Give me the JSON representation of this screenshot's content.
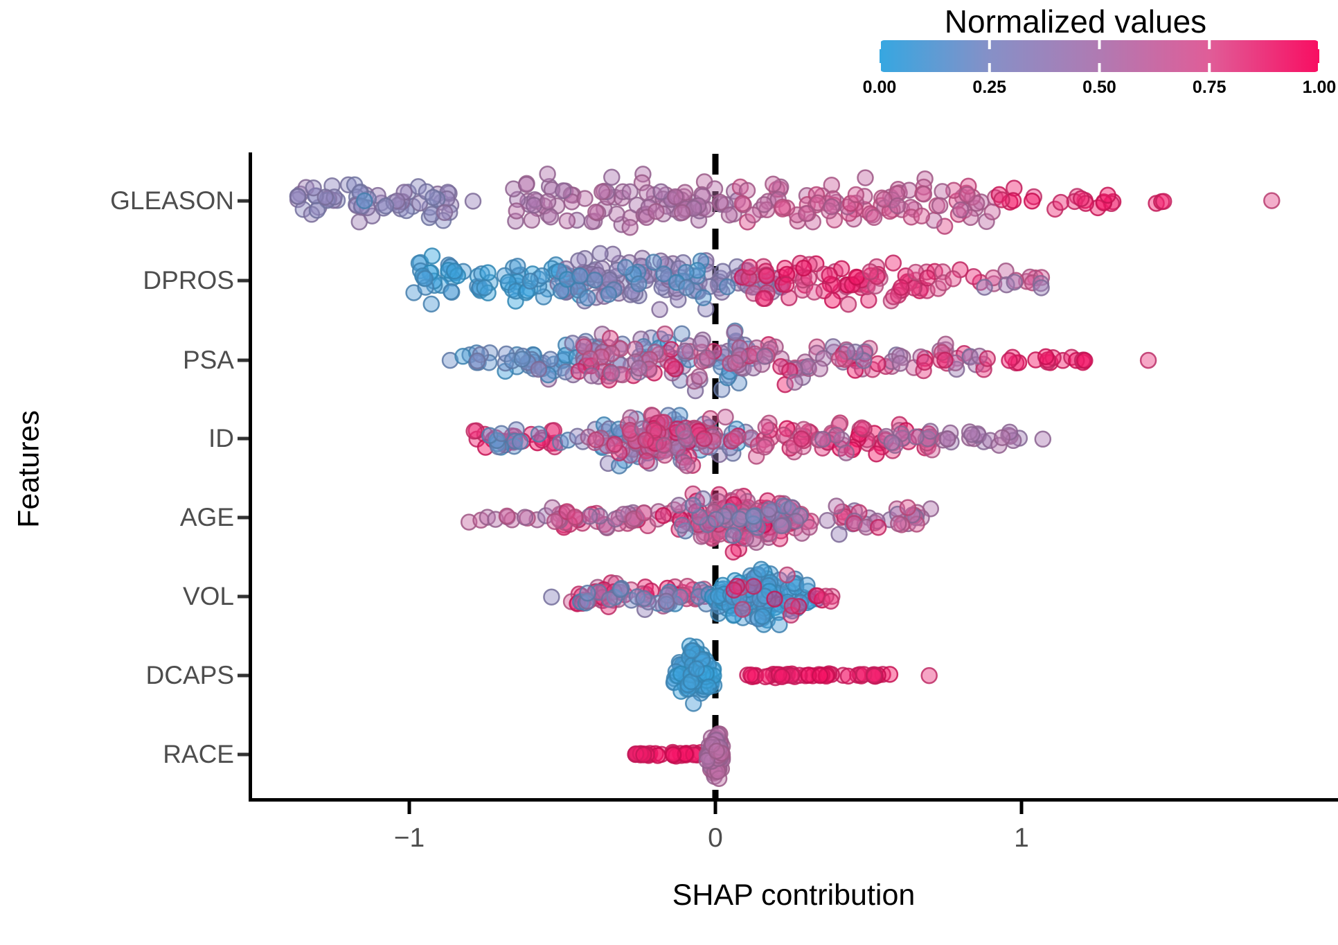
{
  "chart_data": {
    "type": "scatter",
    "variant": "shap-summary-beeswarm",
    "title": "",
    "xlabel": "SHAP contribution",
    "ylabel": "Features",
    "features": [
      "GLEASON",
      "DPROS",
      "PSA",
      "ID",
      "AGE",
      "VOL",
      "DCAPS",
      "RACE"
    ],
    "x_ticks": {
      "values": [
        -1,
        0,
        1
      ],
      "labels": [
        "−1",
        "0",
        "1"
      ]
    },
    "xlim": [
      -1.52,
      2.03
    ],
    "grid": false,
    "zero_reference_line": {
      "x": 0,
      "style": "dashed",
      "color": "#000000"
    },
    "axis_text_color": "#4d4d4d",
    "axis_line_color": "#000000",
    "legend": {
      "position": "top-right",
      "title": "Normalized values",
      "scale_ticks": [
        "0.00",
        "0.25",
        "0.50",
        "0.75",
        "1.00"
      ],
      "scale_tick_values": [
        0,
        0.25,
        0.5,
        0.75,
        1
      ],
      "gradient_stops": [
        "#36a7e1",
        "#8690c7",
        "#b07ab2",
        "#e05d98",
        "#f80e62"
      ]
    },
    "point_style": {
      "radius_px": 11,
      "fill_opacity": 0.45,
      "stroke_opacity": 0.85
    },
    "clusters": {
      "GLEASON": [
        {
          "x0": -1.38,
          "x1": -0.82,
          "v0": 0.26,
          "v1": 0.42,
          "n": 65,
          "spread": 40
        },
        {
          "x0": -1.15,
          "x1": -1.12,
          "v0": 0.08,
          "v1": 0.14,
          "n": 1,
          "spread": 3
        },
        {
          "x0": -0.8,
          "x1": -0.77,
          "v0": 0.34,
          "v1": 0.4,
          "n": 1,
          "spread": 3
        },
        {
          "x0": -0.66,
          "x1": 0.08,
          "v0": 0.46,
          "v1": 0.6,
          "n": 95,
          "spread": 46
        },
        {
          "x0": 0.08,
          "x1": 0.92,
          "v0": 0.58,
          "v1": 0.8,
          "n": 95,
          "spread": 46
        },
        {
          "x0": 0.92,
          "x1": 1.32,
          "v0": 0.85,
          "v1": 1.0,
          "n": 20,
          "spread": 22
        },
        {
          "x0": 1.42,
          "x1": 1.52,
          "v0": 0.9,
          "v1": 1.0,
          "n": 3,
          "spread": 8
        },
        {
          "x0": 1.8,
          "x1": 1.84,
          "v0": 0.78,
          "v1": 0.85,
          "n": 1,
          "spread": 3
        }
      ],
      "DPROS": [
        {
          "x0": -1.0,
          "x1": -0.44,
          "v0": 0.0,
          "v1": 0.1,
          "n": 75,
          "spread": 40
        },
        {
          "x0": -0.52,
          "x1": 0.22,
          "v0": 0.3,
          "v1": 0.44,
          "n": 115,
          "spread": 48
        },
        {
          "x0": -0.52,
          "x1": 0.05,
          "v0": 0.05,
          "v1": 0.2,
          "n": 25,
          "spread": 45
        },
        {
          "x0": 0.08,
          "x1": 0.72,
          "v0": 0.72,
          "v1": 1.0,
          "n": 80,
          "spread": 42
        },
        {
          "x0": 0.72,
          "x1": 1.08,
          "v0": 0.62,
          "v1": 0.92,
          "n": 16,
          "spread": 22
        },
        {
          "x0": 0.85,
          "x1": 1.1,
          "v0": 0.36,
          "v1": 0.46,
          "n": 5,
          "spread": 18
        }
      ],
      "PSA": [
        {
          "x0": -0.88,
          "x1": -0.85,
          "v0": 0.18,
          "v1": 0.22,
          "n": 1,
          "spread": 3
        },
        {
          "x0": -0.83,
          "x1": -0.56,
          "v0": 0.05,
          "v1": 0.25,
          "n": 28,
          "spread": 22
        },
        {
          "x0": -0.58,
          "x1": 0.12,
          "v0": 0.05,
          "v1": 0.5,
          "n": 85,
          "spread": 50
        },
        {
          "x0": -0.45,
          "x1": 0.32,
          "v0": 0.4,
          "v1": 0.95,
          "n": 85,
          "spread": 48
        },
        {
          "x0": 0.32,
          "x1": 0.88,
          "v0": 0.35,
          "v1": 0.95,
          "n": 55,
          "spread": 32
        },
        {
          "x0": 0.88,
          "x1": 1.22,
          "v0": 0.85,
          "v1": 1.0,
          "n": 18,
          "spread": 10
        },
        {
          "x0": 1.38,
          "x1": 1.42,
          "v0": 0.82,
          "v1": 0.88,
          "n": 1,
          "spread": 3
        }
      ],
      "ID": [
        {
          "x0": -0.8,
          "x1": -0.52,
          "v0": 0.85,
          "v1": 1.0,
          "n": 26,
          "spread": 20
        },
        {
          "x0": -0.74,
          "x1": -0.48,
          "v0": 0.05,
          "v1": 0.25,
          "n": 14,
          "spread": 22
        },
        {
          "x0": -0.5,
          "x1": 0.15,
          "v0": 0.05,
          "v1": 0.4,
          "n": 80,
          "spread": 50,
          "shape": "violin"
        },
        {
          "x0": -0.45,
          "x1": 0.18,
          "v0": 0.5,
          "v1": 0.95,
          "n": 85,
          "spread": 50,
          "shape": "violin"
        },
        {
          "x0": 0.12,
          "x1": 0.72,
          "v0": 0.68,
          "v1": 1.0,
          "n": 70,
          "spread": 40
        },
        {
          "x0": 0.35,
          "x1": 0.72,
          "v0": 0.4,
          "v1": 0.55,
          "n": 12,
          "spread": 25
        },
        {
          "x0": 0.74,
          "x1": 1.0,
          "v0": 0.42,
          "v1": 0.55,
          "n": 20,
          "spread": 14
        },
        {
          "x0": 1.04,
          "x1": 1.07,
          "v0": 0.45,
          "v1": 0.5,
          "n": 1,
          "spread": 3
        }
      ],
      "AGE": [
        {
          "x0": -0.81,
          "x1": -0.56,
          "v0": 0.5,
          "v1": 0.72,
          "n": 10,
          "spread": 8
        },
        {
          "x0": -0.56,
          "x1": -0.18,
          "v0": 0.42,
          "v1": 0.92,
          "n": 45,
          "spread": 24
        },
        {
          "x0": -0.18,
          "x1": 0.36,
          "v0": 0.55,
          "v1": 1.0,
          "n": 150,
          "spread": 55,
          "shape": "violin"
        },
        {
          "x0": -0.15,
          "x1": 0.3,
          "v0": 0.15,
          "v1": 0.45,
          "n": 30,
          "spread": 40
        },
        {
          "x0": 0.36,
          "x1": 0.72,
          "v0": 0.3,
          "v1": 0.9,
          "n": 35,
          "spread": 25
        }
      ],
      "VOL": [
        {
          "x0": -0.54,
          "x1": -0.52,
          "v0": 0.3,
          "v1": 0.4,
          "n": 1,
          "spread": 3
        },
        {
          "x0": -0.48,
          "x1": -0.02,
          "v0": 0.6,
          "v1": 1.0,
          "n": 55,
          "spread": 28
        },
        {
          "x0": -0.45,
          "x1": -0.02,
          "v0": 0.05,
          "v1": 0.4,
          "n": 25,
          "spread": 28
        },
        {
          "x0": -0.03,
          "x1": 0.34,
          "v0": 0.0,
          "v1": 0.12,
          "n": 140,
          "spread": 58,
          "shape": "violin"
        },
        {
          "x0": 0.05,
          "x1": 0.3,
          "v0": 0.75,
          "v1": 0.95,
          "n": 10,
          "spread": 40
        },
        {
          "x0": 0.32,
          "x1": 0.42,
          "v0": 0.8,
          "v1": 1.0,
          "n": 6,
          "spread": 14
        }
      ],
      "DCAPS": [
        {
          "x0": -0.14,
          "x1": 0.01,
          "v0": 0.0,
          "v1": 0.08,
          "n": 110,
          "spread": 58,
          "shape": "violin"
        },
        {
          "x0": 0.1,
          "x1": 0.58,
          "v0": 0.92,
          "v1": 1.0,
          "n": 45,
          "spread": 4
        },
        {
          "x0": 0.66,
          "x1": 0.7,
          "v0": 0.8,
          "v1": 0.88,
          "n": 1,
          "spread": 3
        }
      ],
      "RACE": [
        {
          "x0": -0.27,
          "x1": -0.04,
          "v0": 0.93,
          "v1": 1.0,
          "n": 32,
          "spread": 4
        },
        {
          "x0": -0.03,
          "x1": 0.03,
          "v0": 0.5,
          "v1": 0.62,
          "n": 110,
          "spread": 48,
          "shape": "violin"
        }
      ]
    }
  }
}
